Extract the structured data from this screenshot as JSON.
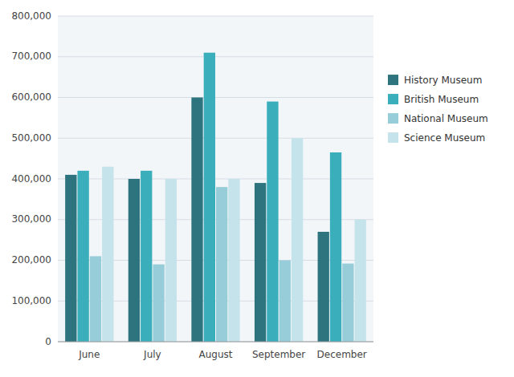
{
  "chart_data": {
    "type": "bar",
    "categories": [
      "June",
      "July",
      "August",
      "September",
      "December"
    ],
    "series": [
      {
        "name": "History Museum",
        "color": "#2E747F",
        "values": [
          410000,
          400000,
          600000,
          390000,
          270000
        ]
      },
      {
        "name": "British Museum",
        "color": "#3AAEBB",
        "values": [
          420000,
          420000,
          710000,
          590000,
          465000
        ]
      },
      {
        "name": "National Museum",
        "color": "#96CDD8",
        "values": [
          210000,
          190000,
          380000,
          200000,
          192000
        ]
      },
      {
        "name": "Science Museum",
        "color": "#C5E3EA",
        "values": [
          430000,
          400000,
          400000,
          500000,
          300000
        ]
      }
    ],
    "ylim": [
      0,
      800000
    ],
    "yticks": [
      0,
      {
        "value": 100000,
        "label": "100,000"
      },
      {
        "value": 200000,
        "label": "200,000"
      },
      {
        "value": 300000,
        "label": "300,000"
      },
      {
        "value": 400000,
        "label": "400,000"
      },
      {
        "value": 500000,
        "label": "500,000"
      },
      {
        "value": 600000,
        "label": "600,000"
      },
      {
        "value": 700000,
        "label": "700,000"
      },
      {
        "value": 800000,
        "label": "800,000"
      }
    ],
    "grid": true,
    "legend": "right"
  }
}
